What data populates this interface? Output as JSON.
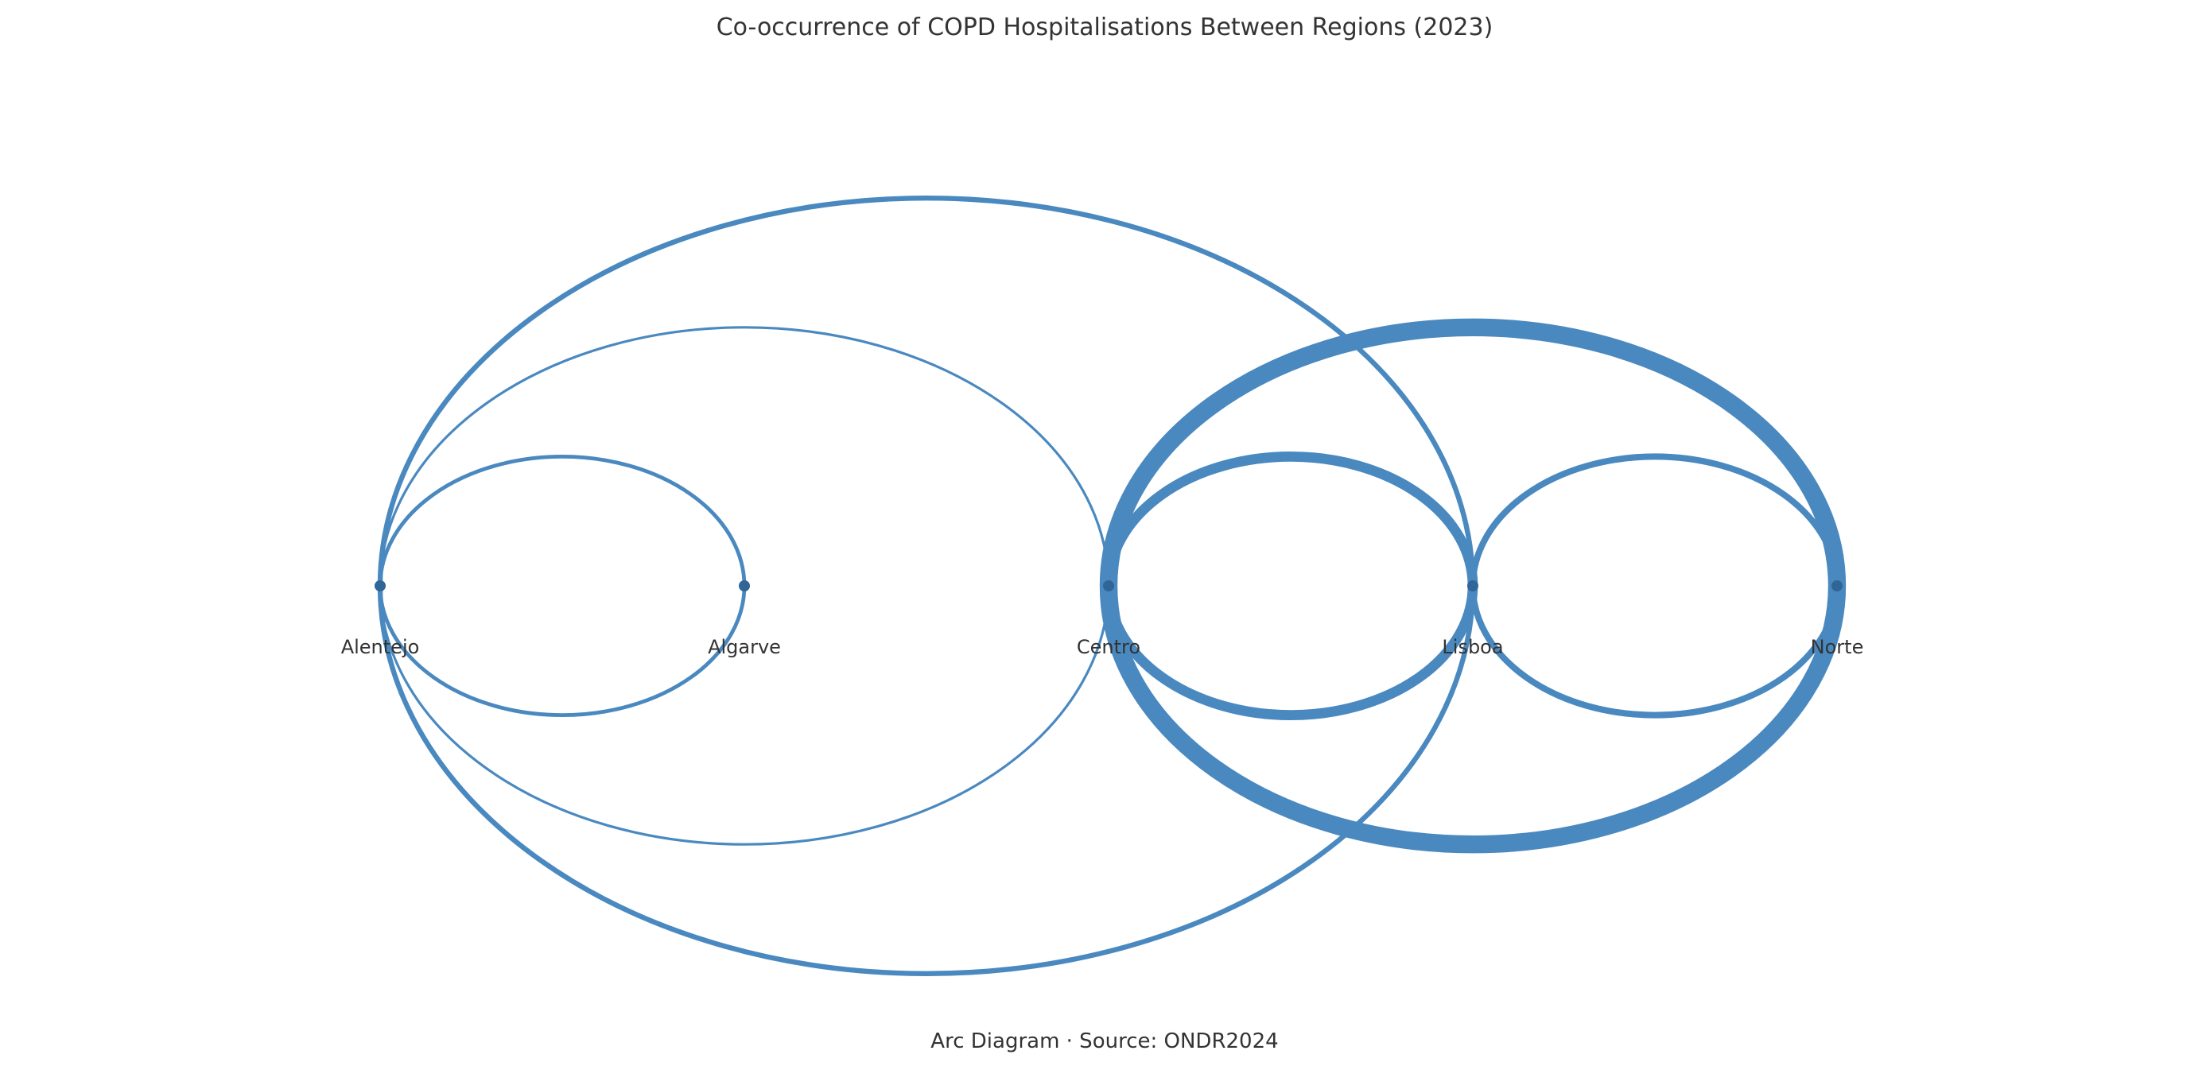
{
  "title": "Co-occurrence of COPD Hospitalisations Between Regions (2023)",
  "caption": "Arc Diagram · Source: ONDR2024",
  "colors": {
    "edge": "#4a89c0",
    "node": "#2f6597",
    "text": "#333333"
  },
  "nodes": [
    {
      "id": "alentejo",
      "label": "Alentejo"
    },
    {
      "id": "algarve",
      "label": "Algarve"
    },
    {
      "id": "centro",
      "label": "Centro"
    },
    {
      "id": "lisboa",
      "label": "Lisboa"
    },
    {
      "id": "norte",
      "label": "Norte"
    }
  ],
  "edges": [
    {
      "source": "alentejo",
      "target": "algarve",
      "weight": 3
    },
    {
      "source": "alentejo",
      "target": "centro",
      "weight": 2
    },
    {
      "source": "alentejo",
      "target": "lisboa",
      "weight": 4
    },
    {
      "source": "centro",
      "target": "lisboa",
      "weight": 8
    },
    {
      "source": "centro",
      "target": "norte",
      "weight": 14
    },
    {
      "source": "lisboa",
      "target": "norte",
      "weight": 5
    }
  ]
}
